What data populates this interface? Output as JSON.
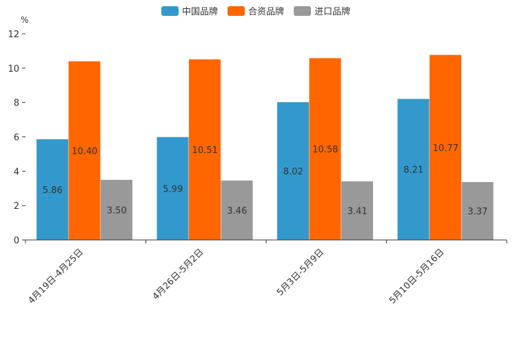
{
  "chart_data": {
    "type": "bar",
    "title": "",
    "xlabel": "",
    "ylabel": "",
    "unit": "%",
    "ylim": [
      0,
      12
    ],
    "yticks": [
      0,
      2,
      4,
      6,
      8,
      10,
      12
    ],
    "legend_position": "top-center",
    "categories": [
      "4月19日-4月25日",
      "4月26日-5月2日",
      "5月3日-5月9日",
      "5月10日-5月16日"
    ],
    "series": [
      {
        "name": "中国品牌",
        "color": "#3399cc",
        "values": [
          5.86,
          5.99,
          8.02,
          8.21
        ],
        "labels": [
          "5.86",
          "5.99",
          "8.02",
          "8.21"
        ]
      },
      {
        "name": "合资品牌",
        "color": "#ff6600",
        "values": [
          10.4,
          10.51,
          10.58,
          10.77
        ],
        "labels": [
          "10.40",
          "10.51",
          "10.58",
          "10.77"
        ]
      },
      {
        "name": "进口品牌",
        "color": "#999999",
        "values": [
          3.5,
          3.46,
          3.41,
          3.37
        ],
        "labels": [
          "3.50",
          "3.46",
          "3.41",
          "3.37"
        ]
      }
    ]
  }
}
